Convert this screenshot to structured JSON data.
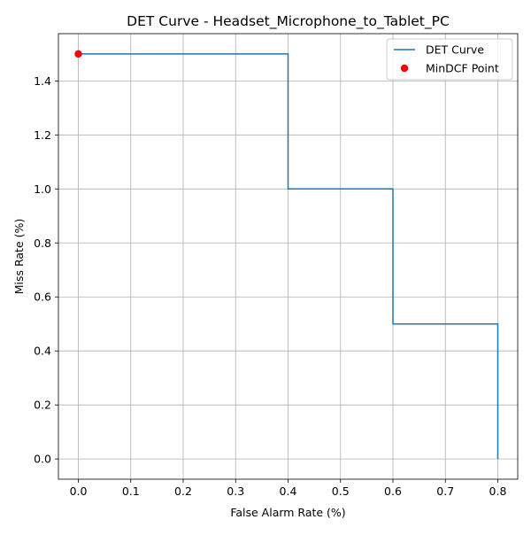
{
  "chart_data": {
    "type": "line",
    "title": "DET Curve - Headset_Microphone_to_Tablet_PC",
    "xlabel": "False Alarm Rate (%)",
    "ylabel": "Miss Rate (%)",
    "xlim": [
      -0.038,
      0.838
    ],
    "ylim": [
      -0.075,
      1.575
    ],
    "x_ticks": [
      0.0,
      0.1,
      0.2,
      0.3,
      0.4,
      0.5,
      0.6,
      0.7,
      0.8
    ],
    "x_tick_labels": [
      "0.0",
      "0.1",
      "0.2",
      "0.3",
      "0.4",
      "0.5",
      "0.6",
      "0.7",
      "0.8"
    ],
    "y_ticks": [
      0.0,
      0.2,
      0.4,
      0.6,
      0.8,
      1.0,
      1.2,
      1.4
    ],
    "y_tick_labels": [
      "0.0",
      "0.2",
      "0.4",
      "0.6",
      "0.8",
      "1.0",
      "1.2",
      "1.4"
    ],
    "grid": true,
    "legend_position": "top-right",
    "series": [
      {
        "name": "DET Curve",
        "kind": "line",
        "color": "#1f77b4",
        "x": [
          0.0,
          0.4,
          0.4,
          0.6,
          0.6,
          0.8,
          0.8
        ],
        "y": [
          1.5,
          1.5,
          1.0,
          1.0,
          0.5,
          0.5,
          0.0
        ]
      },
      {
        "name": "MinDCF Point",
        "kind": "scatter",
        "color": "#ff0000",
        "x": [
          0.0
        ],
        "y": [
          1.5
        ]
      }
    ]
  }
}
